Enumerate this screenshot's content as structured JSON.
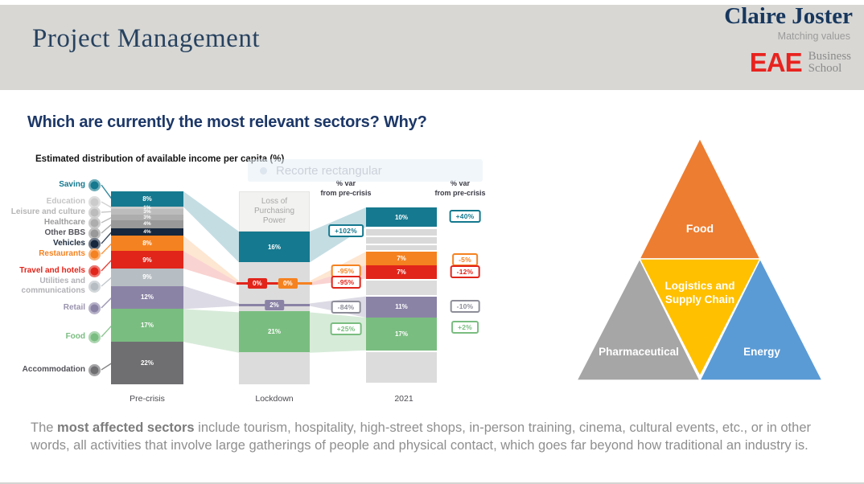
{
  "header": {
    "title": "Project Management",
    "brand": {
      "name": "Claire Joster",
      "tagline": "Matching values",
      "eae": "EAE",
      "school_line1": "Business",
      "school_line2": "School"
    }
  },
  "heading": "Which are currently the most relevant sectors? Why?",
  "chart": {
    "title": "Estimated distribution of available income per capita (%)",
    "overlay_text": "Recorte rectangular",
    "var_header_line1": "% var",
    "var_header_line2": "from pre-crisis",
    "x_labels": [
      "Pre-crisis",
      "Lockdown",
      "2021"
    ],
    "lockdown_label": "Loss of Purchasing Power"
  },
  "chart_data": {
    "type": "bar",
    "variant": "stacked-flow",
    "title": "Estimated distribution of available income per capita (%)",
    "categories": [
      "Pre-crisis",
      "Lockdown",
      "2021"
    ],
    "unit": "%",
    "var_column_header": "% var from pre-crisis",
    "sectors": [
      {
        "name": "Saving",
        "color": "#15798f",
        "label_color": "#15798f",
        "values": {
          "pre_crisis": 8,
          "lockdown": 16,
          "y2021": 10
        },
        "var_lockdown": "+102%",
        "var_2021": "+40%"
      },
      {
        "name": "Education",
        "color": "#cbcbcb",
        "label_color": "#c6c6c6",
        "values": {
          "pre_crisis": 1,
          "lockdown": null,
          "y2021": null
        }
      },
      {
        "name": "Leisure and culture",
        "color": "#bcbcbc",
        "label_color": "#b5b5b5",
        "values": {
          "pre_crisis": 3,
          "lockdown": null,
          "y2021": null
        }
      },
      {
        "name": "Healthcare",
        "color": "#adadad",
        "label_color": "#9d9d9d",
        "values": {
          "pre_crisis": 3,
          "lockdown": null,
          "y2021": null
        }
      },
      {
        "name": "Other BBS",
        "color": "#999999",
        "label_color": "#55555c",
        "values": {
          "pre_crisis": 4,
          "lockdown": null,
          "y2021": null
        }
      },
      {
        "name": "Vehicles",
        "color": "#17273d",
        "label_color": "#1d2b3f",
        "values": {
          "pre_crisis": 4,
          "lockdown": null,
          "y2021": null
        }
      },
      {
        "name": "Restaurants",
        "color": "#f58220",
        "label_color": "#f58220",
        "values": {
          "pre_crisis": 8,
          "lockdown": 0,
          "y2021": 7
        },
        "var_lockdown": "-95%",
        "var_2021": "-5%"
      },
      {
        "name": "Travel and hotels",
        "color": "#e1251b",
        "label_color": "#e1251b",
        "values": {
          "pre_crisis": 9,
          "lockdown": 0,
          "y2021": 7
        },
        "var_lockdown": "-95%",
        "var_2021": "-12%"
      },
      {
        "name": "Utilities and communications",
        "color": "#b7bec3",
        "label_color": "#b2b2b7",
        "values": {
          "pre_crisis": 9,
          "lockdown": null,
          "y2021": null
        }
      },
      {
        "name": "Retail",
        "color": "#8b83a6",
        "label_color": "#9a93ae",
        "badge_color": "#8e8e9a",
        "values": {
          "pre_crisis": 12,
          "lockdown": 2,
          "y2021": 11
        },
        "var_lockdown": "-84%",
        "var_2021": "-10%"
      },
      {
        "name": "Food",
        "color": "#7abd80",
        "label_color": "#7abd80",
        "values": {
          "pre_crisis": 17,
          "lockdown": 21,
          "y2021": 17
        },
        "var_lockdown": "+25%",
        "var_2021": "+2%"
      },
      {
        "name": "Accommodation",
        "color": "#6f6f72",
        "label_color": "#53535a",
        "values": {
          "pre_crisis": 22,
          "lockdown": null,
          "y2021": null
        }
      }
    ]
  },
  "triangle": {
    "top": "Food",
    "middle_line1": "Logistics and",
    "middle_line2": "Supply Chain",
    "left": "Pharmaceutical",
    "right": "Energy",
    "colors": {
      "food": "#ED7D31",
      "logistics": "#FFC000",
      "pharmaceutical": "#A6A6A6",
      "energy": "#5B9BD5"
    }
  },
  "footer": {
    "prefix": "The ",
    "bold": "most affected sectors",
    "rest": " include tourism, hospitality, high-street shops, in-person training, cinema, cultural events, etc., or in other words, all activities that involve large gatherings of people and physical contact, which goes far beyond how traditional an industry is."
  }
}
